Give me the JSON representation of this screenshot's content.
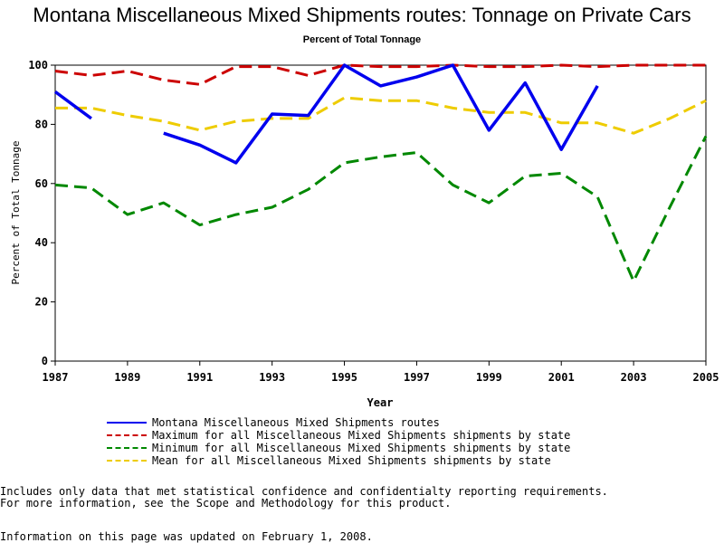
{
  "chart_data": {
    "type": "line",
    "title": "Montana Miscellaneous Mixed Shipments routes: Tonnage on Private Cars",
    "subtitle": "Percent of Total Tonnage",
    "xlabel": "Year",
    "ylabel": "Percent of Total Tonnage",
    "xlim": [
      1987,
      2005
    ],
    "ylim": [
      0,
      100
    ],
    "x_ticks": [
      "1987",
      "1989",
      "1991",
      "1993",
      "1995",
      "1997",
      "1999",
      "2001",
      "2003",
      "2005"
    ],
    "y_ticks": [
      "0",
      "20",
      "40",
      "60",
      "80",
      "100"
    ],
    "grid": false,
    "legend_position": "bottom",
    "series": [
      {
        "name": "Montana Miscellaneous Mixed Shipments routes",
        "color": "#0000ee",
        "style": "solid",
        "points": [
          [
            1987,
            91
          ],
          [
            1988,
            82
          ],
          [
            1990,
            77
          ],
          [
            1991,
            73
          ],
          [
            1992,
            67
          ],
          [
            1993,
            83.5
          ],
          [
            1994,
            83
          ],
          [
            1995,
            100
          ],
          [
            1996,
            93
          ],
          [
            1997,
            96
          ],
          [
            1998,
            100
          ],
          [
            1999,
            78
          ],
          [
            2000,
            94
          ],
          [
            2001,
            71.5
          ],
          [
            2002,
            93
          ]
        ],
        "gaps_after": [
          1988
        ]
      },
      {
        "name": "Maximum for all Miscellaneous Mixed Shipments shipments by state",
        "color": "#cc0000",
        "style": "dashed",
        "points": [
          [
            1987,
            98
          ],
          [
            1988,
            96.5
          ],
          [
            1989,
            98
          ],
          [
            1990,
            95
          ],
          [
            1991,
            93.5
          ],
          [
            1992,
            99.5
          ],
          [
            1993,
            99.5
          ],
          [
            1994,
            96.5
          ],
          [
            1995,
            100
          ],
          [
            1996,
            99.5
          ],
          [
            1997,
            99.5
          ],
          [
            1998,
            100
          ],
          [
            1999,
            99.5
          ],
          [
            2000,
            99.5
          ],
          [
            2001,
            100
          ],
          [
            2002,
            99.5
          ],
          [
            2003,
            100
          ],
          [
            2004,
            100
          ],
          [
            2005,
            100
          ]
        ]
      },
      {
        "name": "Minimum for all Miscellaneous Mixed Shipments shipments by state",
        "color": "#008800",
        "style": "dashed",
        "points": [
          [
            1987,
            59.5
          ],
          [
            1988,
            58.5
          ],
          [
            1989,
            49.5
          ],
          [
            1990,
            53.5
          ],
          [
            1991,
            46
          ],
          [
            1992,
            49.5
          ],
          [
            1993,
            52
          ],
          [
            1994,
            58
          ],
          [
            1995,
            67
          ],
          [
            1996,
            69
          ],
          [
            1997,
            70.5
          ],
          [
            1998,
            59.5
          ],
          [
            1999,
            53.5
          ],
          [
            2000,
            62.5
          ],
          [
            2001,
            63.5
          ],
          [
            2002,
            55.5
          ],
          [
            2003,
            27
          ],
          [
            2004,
            52
          ],
          [
            2005,
            76
          ]
        ]
      },
      {
        "name": "Mean for all Miscellaneous Mixed Shipments shipments by state",
        "color": "#eecc00",
        "style": "dashed",
        "points": [
          [
            1987,
            85.5
          ],
          [
            1988,
            85.5
          ],
          [
            1989,
            83
          ],
          [
            1990,
            81
          ],
          [
            1991,
            78
          ],
          [
            1992,
            81
          ],
          [
            1993,
            82
          ],
          [
            1994,
            82
          ],
          [
            1995,
            89
          ],
          [
            1996,
            88
          ],
          [
            1997,
            88
          ],
          [
            1998,
            85.5
          ],
          [
            1999,
            84
          ],
          [
            2000,
            84
          ],
          [
            2001,
            80.5
          ],
          [
            2002,
            80.5
          ],
          [
            2003,
            77
          ],
          [
            2004,
            82
          ],
          [
            2005,
            88
          ]
        ]
      }
    ]
  },
  "footnotes": {
    "line1": "Includes only data that met statistical confidence and confidentialty reporting requirements.",
    "line2": "For more information, see the Scope and Methodology for this product.",
    "line3": "Information on this page was updated on February 1, 2008."
  }
}
